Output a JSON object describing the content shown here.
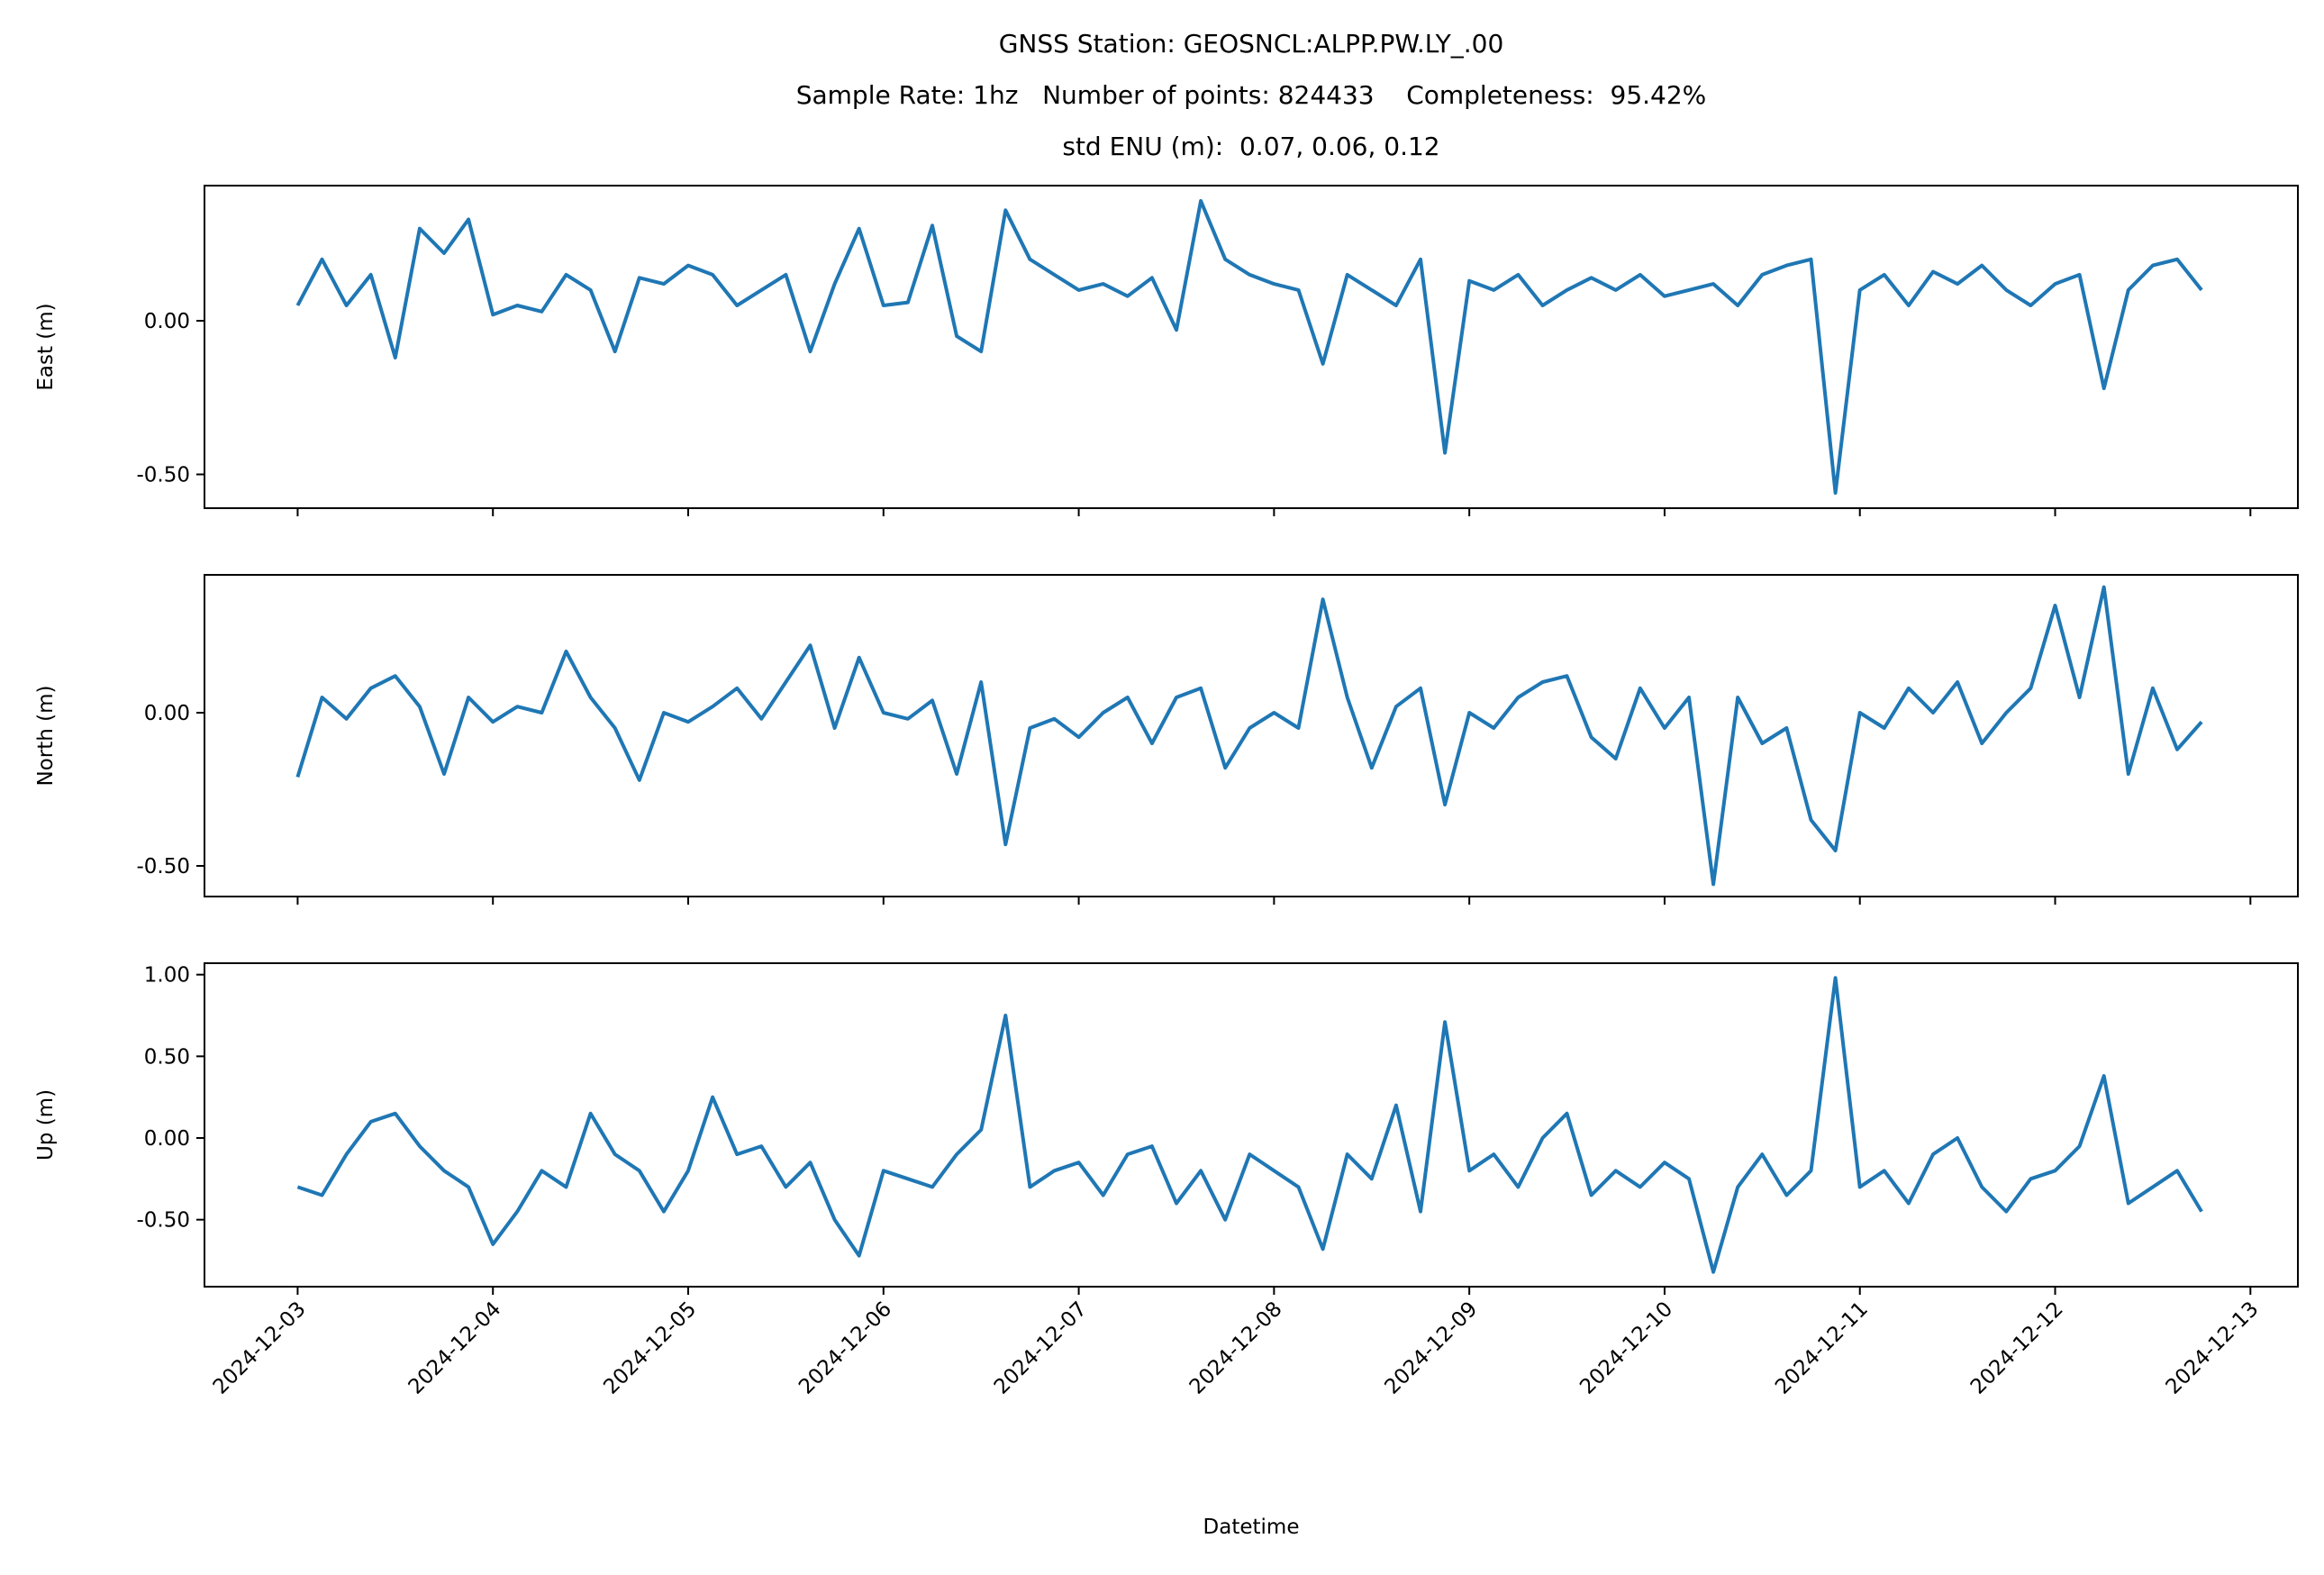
{
  "chart_data": [
    {
      "type": "line",
      "title": [
        "GNSS Station: GEOSNCL:ALPP.PW.LY_.00",
        "Sample Rate: 1hz   Number of points: 824433    Completeness:  95.42%",
        "std ENU (m):  0.07, 0.06, 0.12"
      ],
      "ylabel": "East (m)",
      "color": "#1f77b4",
      "ylim": [
        -0.61,
        0.44
      ],
      "yticks": [
        {
          "value": -0.5,
          "label": "-0.50"
        },
        {
          "value": 0,
          "label": "0.00"
        }
      ],
      "values": [
        0.05,
        0.2,
        0.05,
        0.15,
        -0.12,
        0.3,
        0.22,
        0.33,
        0.02,
        0.05,
        0.03,
        0.15,
        0.1,
        -0.1,
        0.14,
        0.12,
        0.18,
        0.15,
        0.05,
        0.1,
        0.15,
        -0.1,
        0.12,
        0.3,
        0.05,
        0.06,
        0.31,
        -0.05,
        -0.1,
        0.36,
        0.2,
        0.15,
        0.1,
        0.12,
        0.08,
        0.14,
        -0.03,
        0.39,
        0.2,
        0.15,
        0.12,
        0.1,
        -0.14,
        0.15,
        0.1,
        0.05,
        0.2,
        -0.43,
        0.13,
        0.1,
        0.15,
        0.05,
        0.1,
        0.14,
        0.1,
        0.15,
        0.08,
        0.1,
        0.12,
        0.05,
        0.15,
        0.18,
        0.2,
        -0.56,
        0.1,
        0.15,
        0.05,
        0.16,
        0.12,
        0.18,
        0.1,
        0.05,
        0.12,
        0.15,
        -0.22,
        0.1,
        0.18,
        0.2,
        0.1
      ]
    },
    {
      "type": "line",
      "ylabel": "North (m)",
      "color": "#1f77b4",
      "ylim": [
        -0.6,
        0.45
      ],
      "yticks": [
        {
          "value": -0.5,
          "label": "-0.50"
        },
        {
          "value": 0,
          "label": "0.00"
        }
      ],
      "values": [
        -0.21,
        0.05,
        -0.02,
        0.08,
        0.12,
        0.02,
        -0.2,
        0.05,
        -0.03,
        0.02,
        0.0,
        0.2,
        0.05,
        -0.05,
        -0.22,
        0.0,
        -0.03,
        0.02,
        0.08,
        -0.02,
        0.1,
        0.22,
        -0.05,
        0.18,
        0.0,
        -0.02,
        0.04,
        -0.2,
        0.1,
        -0.43,
        -0.05,
        -0.02,
        -0.08,
        0.0,
        0.05,
        -0.1,
        0.05,
        0.08,
        -0.18,
        -0.05,
        0.0,
        -0.05,
        0.37,
        0.05,
        -0.18,
        0.02,
        0.08,
        -0.3,
        0.0,
        -0.05,
        0.05,
        0.1,
        0.12,
        -0.08,
        -0.15,
        0.08,
        -0.05,
        0.05,
        -0.56,
        0.05,
        -0.1,
        -0.05,
        -0.35,
        -0.45,
        0.0,
        -0.05,
        0.08,
        0.0,
        0.1,
        -0.1,
        0.0,
        0.08,
        0.35,
        0.05,
        0.41,
        -0.2,
        0.08,
        -0.12,
        -0.03
      ]
    },
    {
      "type": "line",
      "ylabel": "Up (m)",
      "xlabel": "Datetime",
      "color": "#1f77b4",
      "ylim": [
        -0.91,
        1.07
      ],
      "yticks": [
        {
          "value": -0.5,
          "label": "-0.50"
        },
        {
          "value": 0,
          "label": "0.00"
        },
        {
          "value": 0.5,
          "label": "0.50"
        },
        {
          "value": 1,
          "label": "1.00"
        }
      ],
      "xlim": [
        "2024-12-02 12:33",
        "2024-12-13 05:50"
      ],
      "xticks": [
        "2024-12-03",
        "2024-12-04",
        "2024-12-05",
        "2024-12-06",
        "2024-12-07",
        "2024-12-08",
        "2024-12-09",
        "2024-12-10",
        "2024-12-11",
        "2024-12-12",
        "2024-12-13"
      ],
      "x": [
        "2024-12-03 00:00",
        "2024-12-03 03:00",
        "2024-12-03 06:00",
        "2024-12-03 09:00",
        "2024-12-03 12:00",
        "2024-12-03 15:00",
        "2024-12-03 18:00",
        "2024-12-03 21:00",
        "2024-12-04 00:00",
        "2024-12-04 03:00",
        "2024-12-04 06:00",
        "2024-12-04 09:00",
        "2024-12-04 12:00",
        "2024-12-04 15:00",
        "2024-12-04 18:00",
        "2024-12-04 21:00",
        "2024-12-05 00:00",
        "2024-12-05 03:00",
        "2024-12-05 06:00",
        "2024-12-05 09:00",
        "2024-12-05 12:00",
        "2024-12-05 15:00",
        "2024-12-05 18:00",
        "2024-12-05 21:00",
        "2024-12-06 00:00",
        "2024-12-06 03:00",
        "2024-12-06 06:00",
        "2024-12-06 09:00",
        "2024-12-06 12:00",
        "2024-12-06 15:00",
        "2024-12-06 18:00",
        "2024-12-06 21:00",
        "2024-12-07 00:00",
        "2024-12-07 03:00",
        "2024-12-07 06:00",
        "2024-12-07 09:00",
        "2024-12-07 12:00",
        "2024-12-07 15:00",
        "2024-12-07 18:00",
        "2024-12-07 21:00",
        "2024-12-08 00:00",
        "2024-12-08 03:00",
        "2024-12-08 06:00",
        "2024-12-08 09:00",
        "2024-12-08 12:00",
        "2024-12-08 15:00",
        "2024-12-08 18:00",
        "2024-12-08 21:00",
        "2024-12-09 00:00",
        "2024-12-09 03:00",
        "2024-12-09 06:00",
        "2024-12-09 09:00",
        "2024-12-09 12:00",
        "2024-12-09 15:00",
        "2024-12-09 18:00",
        "2024-12-09 21:00",
        "2024-12-10 00:00",
        "2024-12-10 03:00",
        "2024-12-10 06:00",
        "2024-12-10 09:00",
        "2024-12-10 12:00",
        "2024-12-10 15:00",
        "2024-12-10 18:00",
        "2024-12-10 21:00",
        "2024-12-11 00:00",
        "2024-12-11 03:00",
        "2024-12-11 06:00",
        "2024-12-11 09:00",
        "2024-12-11 12:00",
        "2024-12-11 15:00",
        "2024-12-11 18:00",
        "2024-12-11 21:00",
        "2024-12-12 00:00",
        "2024-12-12 03:00",
        "2024-12-12 06:00",
        "2024-12-12 09:00",
        "2024-12-12 12:00",
        "2024-12-12 15:00",
        "2024-12-12 18:00"
      ],
      "values": [
        -0.3,
        -0.35,
        -0.1,
        0.1,
        0.15,
        -0.05,
        -0.2,
        -0.3,
        -0.65,
        -0.45,
        -0.2,
        -0.3,
        0.15,
        -0.1,
        -0.2,
        -0.45,
        -0.2,
        0.25,
        -0.1,
        -0.05,
        -0.3,
        -0.15,
        -0.5,
        -0.72,
        -0.2,
        -0.25,
        -0.3,
        -0.1,
        0.05,
        0.75,
        -0.3,
        -0.2,
        -0.15,
        -0.35,
        -0.1,
        -0.05,
        -0.4,
        -0.2,
        -0.5,
        -0.1,
        -0.2,
        -0.3,
        -0.68,
        -0.1,
        -0.25,
        0.2,
        -0.45,
        0.71,
        -0.2,
        -0.1,
        -0.3,
        0.0,
        0.15,
        -0.35,
        -0.2,
        -0.3,
        -0.15,
        -0.25,
        -0.82,
        -0.3,
        -0.1,
        -0.35,
        -0.2,
        0.98,
        -0.3,
        -0.2,
        -0.4,
        -0.1,
        0.0,
        -0.3,
        -0.45,
        -0.25,
        -0.2,
        -0.05,
        0.38,
        -0.4,
        -0.3,
        -0.2,
        -0.45
      ]
    }
  ]
}
